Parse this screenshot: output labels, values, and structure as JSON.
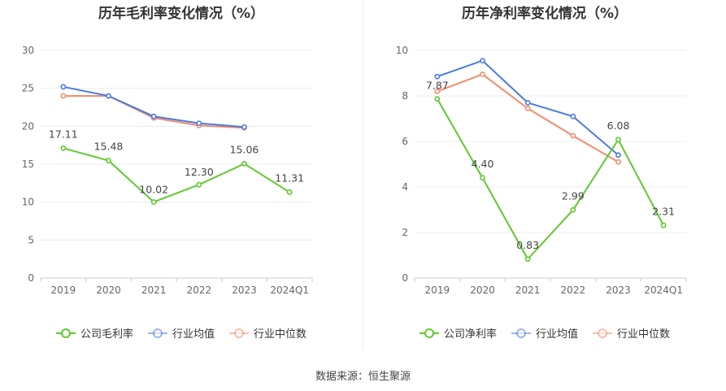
{
  "source_text": "数据来源：恒生聚源",
  "chart_data": [
    {
      "type": "line",
      "title": "历年毛利率变化情况（%）",
      "categories": [
        "2019",
        "2020",
        "2021",
        "2022",
        "2023",
        "2024Q1"
      ],
      "ylim": [
        0,
        30
      ],
      "yticks": [
        0,
        5,
        10,
        15,
        20,
        25,
        30
      ],
      "grid": true,
      "legend_position": "bottom",
      "series": [
        {
          "name": "公司毛利率",
          "color": "#5fc92e",
          "values": [
            17.11,
            15.48,
            10.02,
            12.3,
            15.06,
            11.31
          ],
          "labels": [
            "17.11",
            "15.48",
            "10.02",
            "12.30",
            "15.06",
            "11.31"
          ]
        },
        {
          "name": "行业均值",
          "color": "#4a7be0",
          "values": [
            25.2,
            24.0,
            21.3,
            20.4,
            19.9,
            null
          ],
          "labels": []
        },
        {
          "name": "行业中位数",
          "color": "#f38c6b",
          "values": [
            24.0,
            24.0,
            21.1,
            20.1,
            19.8,
            null
          ],
          "labels": []
        }
      ]
    },
    {
      "type": "line",
      "title": "历年净利率变化情况（%）",
      "categories": [
        "2019",
        "2020",
        "2021",
        "2022",
        "2023",
        "2024Q1"
      ],
      "ylim": [
        0,
        10
      ],
      "yticks": [
        0,
        2,
        4,
        6,
        8,
        10
      ],
      "grid": true,
      "legend_position": "bottom",
      "series": [
        {
          "name": "公司净利率",
          "color": "#5fc92e",
          "values": [
            7.87,
            4.4,
            0.83,
            2.99,
            6.08,
            2.31
          ],
          "labels": [
            "7.87",
            "4.40",
            "0.83",
            "2.99",
            "6.08",
            "2.31"
          ]
        },
        {
          "name": "行业均值",
          "color": "#4a7be0",
          "values": [
            8.85,
            9.55,
            7.7,
            7.1,
            5.4,
            null
          ],
          "labels": []
        },
        {
          "name": "行业中位数",
          "color": "#f38c6b",
          "values": [
            8.2,
            8.95,
            7.45,
            6.25,
            5.1,
            null
          ],
          "labels": []
        }
      ]
    }
  ]
}
